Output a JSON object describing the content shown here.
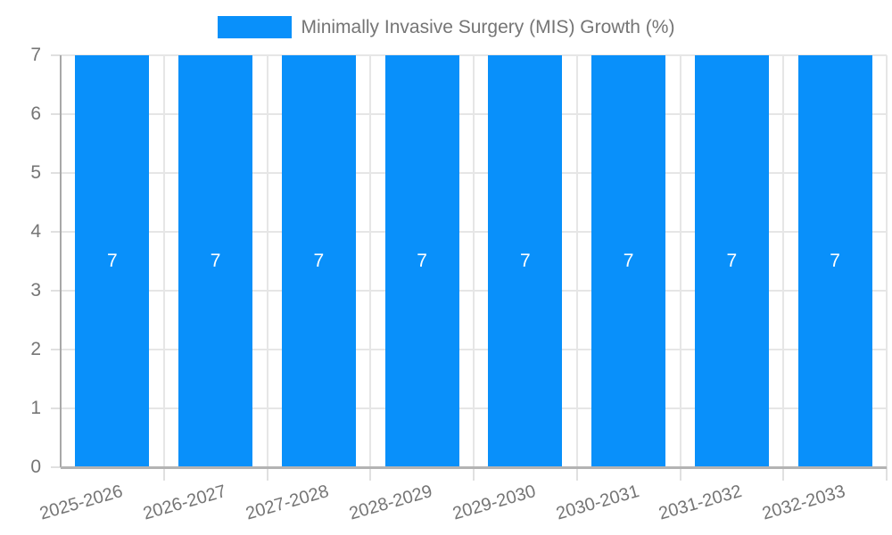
{
  "chart_data": {
    "type": "bar",
    "title": "Minimally Invasive Surgery (MIS) Growth (%)",
    "legend_position": "top",
    "categories": [
      "2025-2026",
      "2026-2027",
      "2027-2028",
      "2028-2029",
      "2029-2030",
      "2030-2031",
      "2031-2032",
      "2032-2033"
    ],
    "series": [
      {
        "name": "Minimally Invasive Surgery (MIS) Growth (%)",
        "values": [
          7,
          7,
          7,
          7,
          7,
          7,
          7,
          7
        ]
      }
    ],
    "data_labels": [
      7,
      7,
      7,
      7,
      7,
      7,
      7,
      7
    ],
    "xlabel": "",
    "ylabel": "",
    "ylim": [
      0,
      7
    ],
    "yticks": [
      0,
      1,
      2,
      3,
      4,
      5,
      6,
      7
    ],
    "grid": true,
    "x_tick_rotation_deg": -16,
    "colors": {
      "bar": "#0990fa",
      "value_label": "#ffffff",
      "axis_text": "#757575",
      "grid_line": "#e6e6e6",
      "axis_line": "#adadad",
      "background": "#ffffff"
    }
  }
}
